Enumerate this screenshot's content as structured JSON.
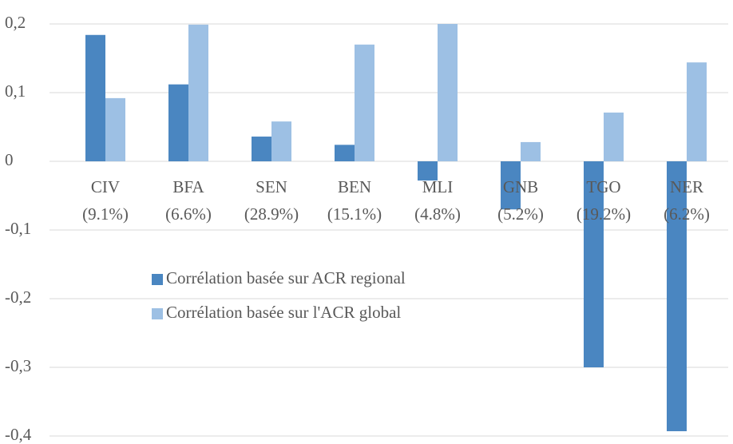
{
  "chart_data": {
    "type": "bar",
    "categories": [
      "CIV\n(9.1%)",
      "BFA\n(6.6%)",
      "SEN\n(28.9%)",
      "BEN\n(15.1%)",
      "MLI\n(4.8%)",
      "GNB\n(5.2%)",
      "TGO\n(19.2%)",
      "NER\n(6.2%)"
    ],
    "series": [
      {
        "name": "Corrélation basée sur ACR regional",
        "color": "#4a86c1",
        "values": [
          0.184,
          0.112,
          0.036,
          0.024,
          -0.028,
          -0.07,
          -0.3,
          -0.393
        ]
      },
      {
        "name": "Corrélation basée sur l'ACR global",
        "color": "#9dc0e4",
        "values": [
          0.092,
          0.199,
          0.058,
          0.17,
          0.2,
          0.028,
          0.071,
          0.144
        ]
      }
    ],
    "ylim": [
      -0.4,
      0.2
    ],
    "yticks": [
      {
        "value": 0.2,
        "label": "0,2"
      },
      {
        "value": 0.1,
        "label": "0,1"
      },
      0,
      {
        "value": -0.1,
        "label": "-0,1"
      },
      {
        "value": -0.2,
        "label": "-0,2"
      },
      {
        "value": -0.3,
        "label": "-0,3"
      },
      {
        "value": -0.4,
        "label": "-0,4"
      }
    ],
    "grid": true,
    "legend": "center-left"
  }
}
